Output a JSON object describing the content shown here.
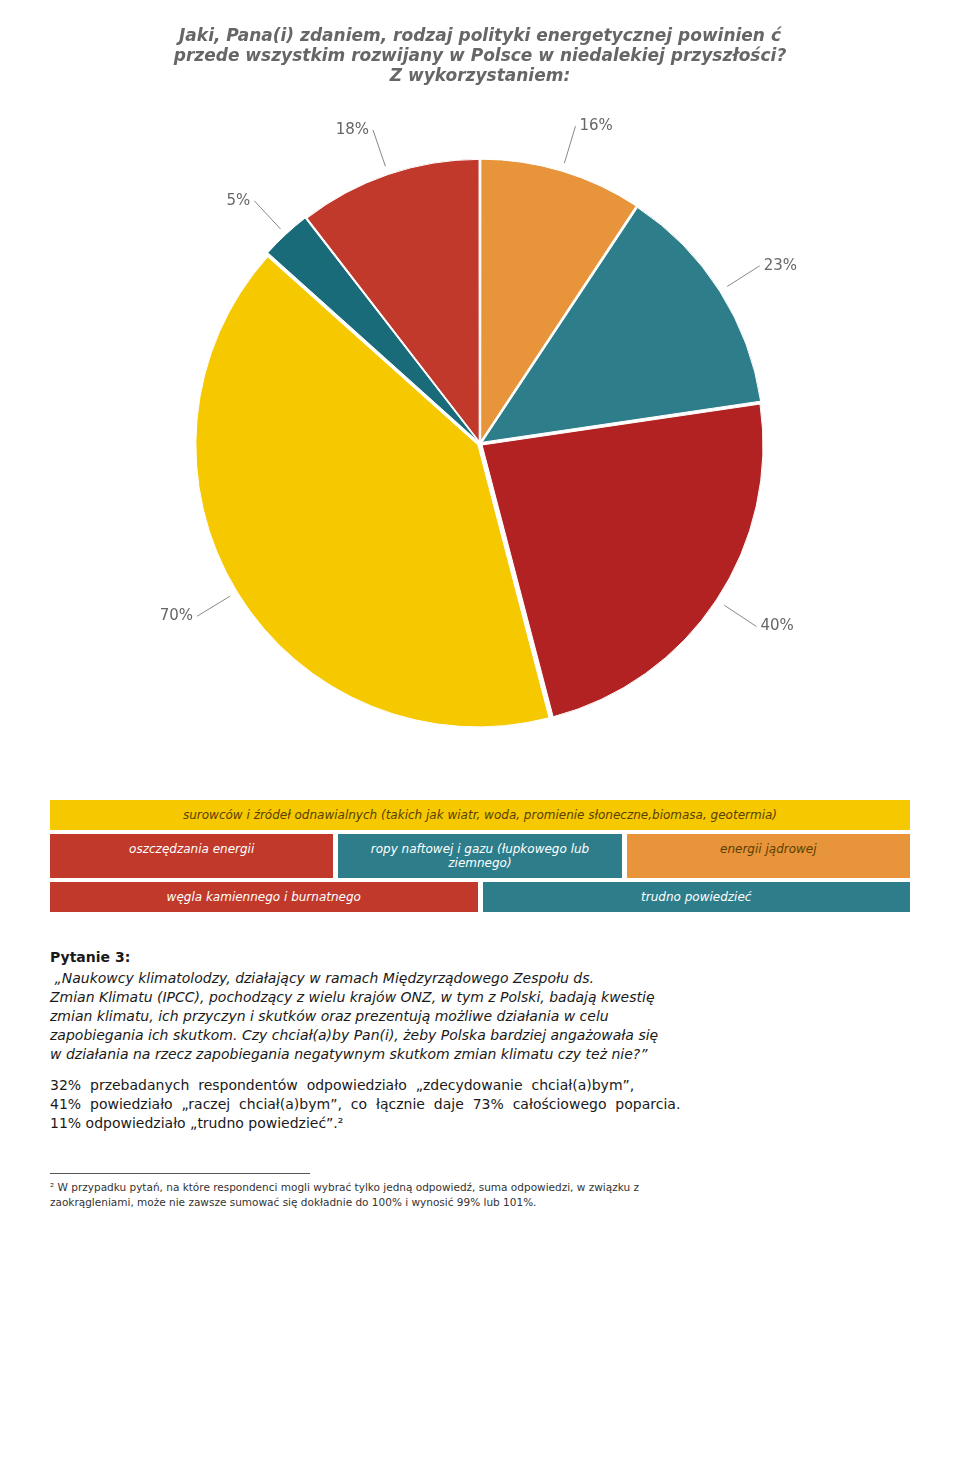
{
  "chart_data": {
    "type": "pie",
    "title": [
      "Jaki, Pana(i) zdaniem, rodzaj polityki energetycznej powinien ć",
      "przede wszystkim rozwijany w Polsce w niedalekiej przyszłości?",
      "Z wykorzystaniem:"
    ],
    "values": [
      16,
      23,
      40,
      70,
      5,
      18
    ],
    "value_labels": [
      "16%",
      "23%",
      "40%",
      "70%",
      "5%",
      "18%"
    ],
    "colors": [
      "#E8943A",
      "#2E7D8A",
      "#B22222",
      "#F5C800",
      "#1A6B7A",
      "#C0392B"
    ],
    "data_labels": true,
    "annotations": [
      [
        {
          "text": "surowców i źródeł odnawialnych (takich jak wiatr, woda, promienie słoneczne,biomasa, geotermia)",
          "color": "#F5C800"
        }
      ],
      [
        {
          "text": "oszczędzania energii",
          "color": "#C0392B"
        },
        {
          "text": "ropy naftowej i gazu (łupkowego lub ziemnego)",
          "color": "#2E7D8A"
        },
        {
          "text": "energii jądrowej",
          "color": "#E8943A"
        }
      ],
      [
        {
          "text": "węgla kamiennego i burnatnego",
          "color": "#C0392B"
        },
        {
          "text": "trudno powiedzieć",
          "color": "#2E7D8A"
        }
      ]
    ],
    "body": {
      "heading": "Pytanie 3:",
      "quote": [
        " „Naukowcy klimatolodzy, działający w ramach Międzyrządowego Zespołu ds.",
        "Zmian Klimatu (IPCC), pochodzący z wielu krajów ONZ, w tym z Polski, badają kwestię",
        "zmian klimatu, ich przyczyn i skutków oraz prezentują możliwe działania w celu",
        "zapobiegania ich skutkom. Czy chciał(a)by Pan(i), żeby Polska bardziej angażowała się",
        "w działania na rzecz zapobiegania negatywnym skutkom zmian klimatu czy też nie?”"
      ],
      "paragraph": [
        "32%  przebadanych  respondentów  odpowiedziało  „zdecydowanie  chciał(a)bym”,",
        "41%  powiedziało  „raczej  chciał(a)bym”,  co  łącznie  daje  73%  całościowego  poparcia.",
        "11% odpowiedziało „trudno powiedzieć”.²"
      ]
    },
    "footnote": [
      "² W przypadku pytań, na które respondenci mogli wybrać tylko jedną odpowiedź, suma odpowiedzi, w związku z",
      "zaokrągleniami, może nie zawsze sumować się dokładnie do 100% i wynosić 99% lub 101%."
    ]
  }
}
